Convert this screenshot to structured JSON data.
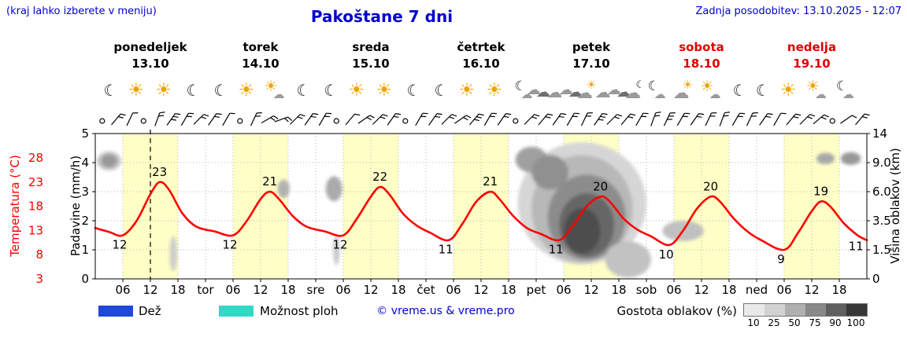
{
  "header": {
    "hint": "(kraj lahko izberete v meniju)",
    "title": "Pakoštane 7 dni",
    "updated": "Zadnja posodobitev: 13.10.2025 - 12:07"
  },
  "colors": {
    "accent_blue": "#0000cc",
    "weekend_red": "#e00000"
  },
  "days": [
    {
      "name": "ponedeljek",
      "date": "13.10",
      "weekend": false
    },
    {
      "name": "torek",
      "date": "14.10",
      "weekend": false
    },
    {
      "name": "sreda",
      "date": "15.10",
      "weekend": false
    },
    {
      "name": "četrtek",
      "date": "16.10",
      "weekend": false
    },
    {
      "name": "petek",
      "date": "17.10",
      "weekend": false
    },
    {
      "name": "sobota",
      "date": "18.10",
      "weekend": true
    },
    {
      "name": "nedelja",
      "date": "19.10",
      "weekend": true
    }
  ],
  "axes": {
    "temperature_label": "Temperatura (°C)",
    "precipitation_label": "Padavine (mm/h)",
    "cloud_height_label": "Višina oblakov (km)"
  },
  "legend": {
    "rain": {
      "label": "Dež",
      "color": "#1f49d7"
    },
    "showers": {
      "label": "Možnost ploh",
      "color": "#2fd9c6"
    },
    "copyright": "© vreme.us & vreme.pro",
    "cloud_cover": {
      "label": "Gostota oblakov (%)",
      "levels": [
        "10",
        "25",
        "50",
        "75",
        "90",
        "100"
      ],
      "colors": [
        "#e9e9e9",
        "#d2d2d2",
        "#b0b0b0",
        "#898989",
        "#5f5f5f",
        "#373737"
      ]
    }
  },
  "chart_data": {
    "type": "line",
    "title": "Pakoštane 7 dni",
    "x_unit": "hours from Mon 13.10 00:00",
    "x_range": [
      0,
      168
    ],
    "day_band_hours": [
      6,
      18
    ],
    "now_t": 12,
    "colors": {
      "day_band": "#feffc6",
      "grid": "#b5b5b5",
      "frame": "#000000",
      "now_line": "#000000"
    },
    "temp_axis": {
      "min": 3,
      "max": 28,
      "ticks": [
        28,
        23,
        18,
        13,
        8,
        3
      ]
    },
    "precip_axis": {
      "min": 0,
      "max": 5,
      "ticks": [
        5,
        4,
        3,
        2,
        1,
        0
      ]
    },
    "cloud_axis": {
      "ticks_km": [
        14,
        9.0,
        6.0,
        3.5,
        1.5,
        0
      ],
      "tick_labels": [
        "14",
        "9.0",
        "6.0",
        "3.5",
        "1.5",
        "0"
      ]
    },
    "x_ticks": {
      "hours": [
        "06",
        "12",
        "18"
      ],
      "day_abbrevs": [
        "tor",
        "sre",
        "čet",
        "pet",
        "sob",
        "ned"
      ]
    },
    "temperature_series": {
      "name": "Temperatura",
      "color": "#ff0000",
      "points": [
        [
          0,
          13.5
        ],
        [
          3,
          12.7
        ],
        [
          6,
          12
        ],
        [
          9,
          15
        ],
        [
          12,
          20.5
        ],
        [
          14,
          23
        ],
        [
          16,
          21.5
        ],
        [
          19,
          16.5
        ],
        [
          22,
          13.8
        ],
        [
          26,
          12.8
        ],
        [
          30,
          12
        ],
        [
          33,
          15
        ],
        [
          36,
          19.5
        ],
        [
          38,
          21
        ],
        [
          40,
          19.5
        ],
        [
          43,
          16
        ],
        [
          46,
          13.8
        ],
        [
          50,
          12.8
        ],
        [
          54,
          12
        ],
        [
          57,
          15.5
        ],
        [
          60,
          20
        ],
        [
          62,
          22
        ],
        [
          64,
          20.5
        ],
        [
          67,
          16.5
        ],
        [
          70,
          14
        ],
        [
          73,
          12.5
        ],
        [
          77,
          11
        ],
        [
          80,
          14.5
        ],
        [
          83,
          19
        ],
        [
          86,
          21
        ],
        [
          88,
          19.5
        ],
        [
          91,
          16
        ],
        [
          94,
          13.5
        ],
        [
          97,
          12.3
        ],
        [
          101,
          11
        ],
        [
          104,
          14
        ],
        [
          107,
          18
        ],
        [
          110,
          20
        ],
        [
          112,
          19
        ],
        [
          115,
          15.5
        ],
        [
          118,
          13.2
        ],
        [
          121,
          11.8
        ],
        [
          125,
          10
        ],
        [
          128,
          13
        ],
        [
          131,
          17.5
        ],
        [
          134,
          20
        ],
        [
          136,
          19
        ],
        [
          139,
          15.5
        ],
        [
          142,
          12.8
        ],
        [
          145,
          11
        ],
        [
          150,
          9
        ],
        [
          153,
          12.5
        ],
        [
          156,
          17
        ],
        [
          158,
          19
        ],
        [
          160,
          18
        ],
        [
          163,
          14.5
        ],
        [
          166,
          12
        ],
        [
          168,
          11
        ]
      ]
    },
    "temp_maxima": [
      {
        "t": 14,
        "v": 23
      },
      {
        "t": 38,
        "v": 21
      },
      {
        "t": 62,
        "v": 22
      },
      {
        "t": 86,
        "v": 21
      },
      {
        "t": 110,
        "v": 20
      },
      {
        "t": 134,
        "v": 20
      },
      {
        "t": 158,
        "v": 19
      }
    ],
    "temp_minima": [
      {
        "t": 6,
        "v": 12
      },
      {
        "t": 30,
        "v": 12
      },
      {
        "t": 54,
        "v": 12
      },
      {
        "t": 77,
        "v": 11
      },
      {
        "t": 101,
        "v": 11
      },
      {
        "t": 125,
        "v": 10
      },
      {
        "t": 150,
        "v": 9
      },
      {
        "t": 167,
        "v": 11,
        "end": true
      }
    ],
    "clouds": [
      {
        "t": 3,
        "km": 9.3,
        "rt": 2.6,
        "rkm": 1.3,
        "shade": "#c2c2c2"
      },
      {
        "t": 3,
        "km": 9.3,
        "rt": 1.7,
        "rkm": 0.9,
        "shade": "#979797"
      },
      {
        "t": 17,
        "km": 1.3,
        "rt": 0.8,
        "rkm": 1.0,
        "shade": "#cccccc"
      },
      {
        "t": 41,
        "km": 6.3,
        "rt": 1.3,
        "rkm": 0.9,
        "shade": "#b2b2b2"
      },
      {
        "t": 52,
        "km": 6.3,
        "rt": 1.8,
        "rkm": 1.2,
        "shade": "#ababab"
      },
      {
        "t": 52.5,
        "km": 1.5,
        "rt": 0.7,
        "rkm": 0.9,
        "shade": "#c8c8c8"
      },
      {
        "t": 106,
        "km": 5,
        "rt": 14,
        "rkm": 5,
        "shade": "#d6d6d6"
      },
      {
        "t": 106,
        "km": 4.5,
        "rt": 11,
        "rkm": 4.2,
        "shade": "#b8b8b8"
      },
      {
        "t": 107,
        "km": 3.8,
        "rt": 8.5,
        "rkm": 3.2,
        "shade": "#8c8c8c"
      },
      {
        "t": 107,
        "km": 3.2,
        "rt": 6,
        "rkm": 2.3,
        "shade": "#666666"
      },
      {
        "t": 106,
        "km": 2.8,
        "rt": 4,
        "rkm": 1.6,
        "shade": "#4d4d4d"
      },
      {
        "t": 95,
        "km": 9.5,
        "rt": 3.5,
        "rkm": 1.8,
        "shade": "#a0a0a0"
      },
      {
        "t": 99,
        "km": 8,
        "rt": 4,
        "rkm": 2,
        "shade": "#909090"
      },
      {
        "t": 116,
        "km": 1,
        "rt": 5,
        "rkm": 1.0,
        "shade": "#c2c2c2"
      },
      {
        "t": 128,
        "km": 2.8,
        "rt": 4.5,
        "rkm": 0.7,
        "shade": "#c0c0c0"
      },
      {
        "t": 159,
        "km": 9.7,
        "rt": 2,
        "rkm": 0.9,
        "shade": "#a8a8a8"
      },
      {
        "t": 164.5,
        "km": 9.7,
        "rt": 2.2,
        "rkm": 1.0,
        "shade": "#989898"
      }
    ],
    "wind": {
      "y_center": 152,
      "dirs": [
        null,
        40,
        25,
        null,
        20,
        35,
        30,
        45,
        35,
        30,
        null,
        25,
        60,
        70,
        45,
        35,
        30,
        null,
        40,
        55,
        45,
        35,
        null,
        30,
        35,
        45,
        55,
        40,
        30,
        35,
        null,
        45,
        40,
        35,
        30,
        25,
        35,
        45,
        40,
        30,
        20,
        25,
        30,
        35,
        25,
        20,
        30,
        25,
        35,
        30,
        40,
        45,
        50,
        null,
        55,
        40
      ],
      "ticks": [
        0,
        2,
        1,
        0,
        2,
        3,
        2,
        2,
        2,
        1,
        0,
        2,
        2,
        2,
        2,
        2,
        2,
        0,
        1,
        2,
        2,
        2,
        0,
        2,
        2,
        2,
        2,
        3,
        2,
        2,
        0,
        2,
        2,
        2,
        2,
        2,
        3,
        2,
        2,
        2,
        2,
        3,
        2,
        2,
        2,
        2,
        2,
        2,
        2,
        1,
        2,
        2,
        2,
        0,
        1,
        2
      ]
    },
    "icons": [
      {
        "t": 3,
        "type": "moon"
      },
      {
        "t": 9,
        "type": "sun"
      },
      {
        "t": 15,
        "type": "sun"
      },
      {
        "t": 21,
        "type": "moon"
      },
      {
        "t": 27,
        "type": "moon"
      },
      {
        "t": 33,
        "type": "sun"
      },
      {
        "t": 39,
        "type": "sun-cloud"
      },
      {
        "t": 45,
        "type": "moon"
      },
      {
        "t": 51,
        "type": "moon"
      },
      {
        "t": 57,
        "type": "sun"
      },
      {
        "t": 63,
        "type": "sun"
      },
      {
        "t": 69,
        "type": "moon"
      },
      {
        "t": 75,
        "type": "moon"
      },
      {
        "t": 81,
        "type": "sun"
      },
      {
        "t": 87,
        "type": "sun"
      },
      {
        "t": 93,
        "type": "moon-cloud"
      },
      {
        "t": 96.5,
        "type": "clouds"
      },
      {
        "t": 100,
        "type": "cloud"
      },
      {
        "t": 103.5,
        "type": "clouds"
      },
      {
        "t": 107,
        "type": "cloud-sun"
      },
      {
        "t": 110.5,
        "type": "cloud"
      },
      {
        "t": 114,
        "type": "clouds"
      },
      {
        "t": 117.5,
        "type": "cloud-moon"
      },
      {
        "t": 122,
        "type": "moon-cloud"
      },
      {
        "t": 128,
        "type": "cloud-sun"
      },
      {
        "t": 134,
        "type": "sun-cloud"
      },
      {
        "t": 140,
        "type": "moon"
      },
      {
        "t": 145,
        "type": "moon"
      },
      {
        "t": 151,
        "type": "sun"
      },
      {
        "t": 157,
        "type": "sun-cloud"
      },
      {
        "t": 163,
        "type": "moon-cloud"
      }
    ]
  }
}
